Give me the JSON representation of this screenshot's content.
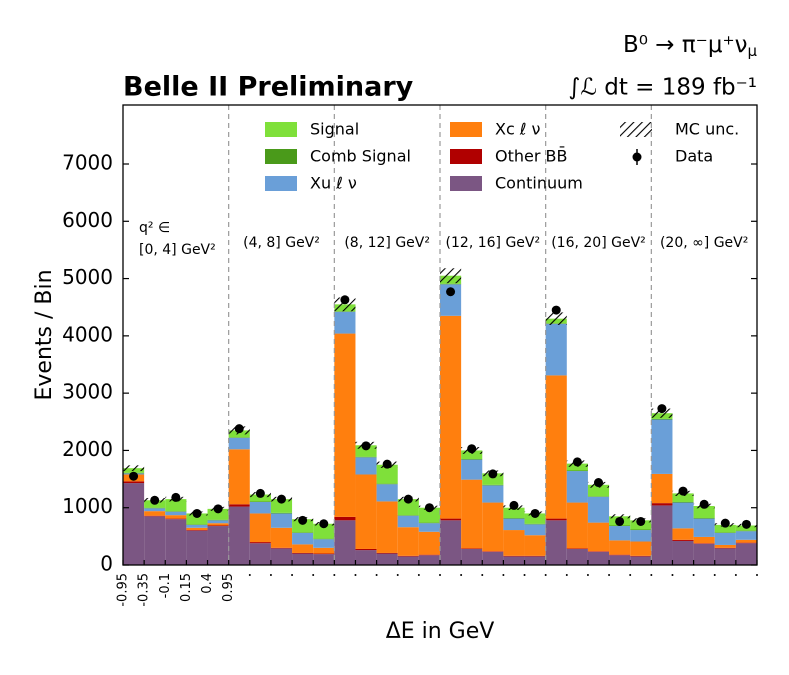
{
  "chart_data": {
    "type": "stacked-histogram",
    "title": "Belle II Preliminary",
    "process": [
      "B⁰ → π⁻μ⁺ν",
      "μ"
    ],
    "luminosity": "∫ℒ dt = 189 fb⁻¹",
    "xlabel": "ΔE in GeV",
    "ylabel": "Events / Bin",
    "ylim": [
      0,
      8030
    ],
    "yticks": [
      0,
      1000,
      2000,
      3000,
      4000,
      5000,
      6000,
      7000
    ],
    "bin_edge_labels": [
      "-0.95",
      "-0.35",
      "-0.1",
      "0.15",
      "0.4",
      "0.95",
      null,
      null,
      null,
      null,
      null,
      null,
      null,
      null,
      null,
      null,
      null,
      null,
      null,
      null,
      null,
      null,
      null,
      null,
      null,
      null,
      null,
      null,
      null,
      null,
      null
    ],
    "regions": [
      [
        "q² ∈",
        "[0, 4] GeV²"
      ],
      [
        "(4, 8] GeV²"
      ],
      [
        "(8, 12] GeV²"
      ],
      [
        "(12, 16] GeV²"
      ],
      [
        "(16, 20] GeV²"
      ],
      [
        "(20, ∞] GeV²"
      ]
    ],
    "series": [
      {
        "name": "Signal",
        "color": "#7fe03a",
        "values": [
          80,
          130,
          210,
          190,
          190,
          120,
          120,
          240,
          230,
          260,
          120,
          200,
          330,
          280,
          260,
          140,
          150,
          200,
          180,
          180,
          80,
          120,
          200,
          160,
          160,
          100,
          150,
          210,
          130,
          90
        ]
      },
      {
        "name": "Comb Signal",
        "color": "#4a9a1a",
        "values": [
          10,
          10,
          10,
          10,
          10,
          10,
          10,
          10,
          10,
          10,
          10,
          10,
          10,
          10,
          10,
          10,
          10,
          10,
          10,
          10,
          10,
          10,
          10,
          10,
          10,
          10,
          10,
          10,
          10,
          10
        ]
      },
      {
        "name": "Xu ℓ ν",
        "color": "#6a9fd8",
        "values": [
          20,
          50,
          60,
          50,
          50,
          200,
          200,
          250,
          200,
          150,
          380,
          300,
          300,
          200,
          150,
          550,
          350,
          300,
          200,
          190,
          900,
          550,
          450,
          250,
          200,
          950,
          450,
          320,
          210,
          150
        ]
      },
      {
        "name": "Xc ℓ ν",
        "color": "#ff7f0e",
        "values": [
          120,
          80,
          60,
          40,
          40,
          960,
          500,
          350,
          150,
          100,
          3200,
          1300,
          900,
          500,
          400,
          3540,
          1200,
          850,
          450,
          360,
          2500,
          800,
          500,
          250,
          250,
          510,
          200,
          110,
          50,
          50
        ]
      },
      {
        "name": "Other BB̄",
        "color": "#b00000",
        "values": [
          30,
          10,
          10,
          10,
          10,
          40,
          20,
          10,
          10,
          10,
          60,
          20,
          10,
          10,
          10,
          30,
          10,
          10,
          10,
          10,
          30,
          10,
          10,
          10,
          10,
          40,
          20,
          10,
          10,
          10
        ]
      },
      {
        "name": "Continuum",
        "color": "#7b5683",
        "values": [
          1430,
          850,
          800,
          600,
          680,
          1020,
          380,
          290,
          200,
          190,
          780,
          260,
          200,
          150,
          170,
          780,
          280,
          230,
          150,
          150,
          780,
          280,
          230,
          170,
          150,
          1040,
          420,
          370,
          290,
          380
        ]
      }
    ],
    "mc_unc": {
      "name": "MC unc.",
      "values": [
        50,
        40,
        40,
        35,
        35,
        70,
        45,
        40,
        35,
        30,
        120,
        60,
        55,
        40,
        35,
        130,
        60,
        50,
        40,
        35,
        110,
        55,
        50,
        35,
        35,
        80,
        45,
        40,
        30,
        30
      ]
    },
    "data": {
      "name": "Data",
      "values": [
        1550,
        1130,
        1180,
        900,
        980,
        2380,
        1250,
        1150,
        780,
        720,
        4630,
        2080,
        1760,
        1150,
        1000,
        4770,
        2030,
        1590,
        1040,
        900,
        4450,
        1800,
        1440,
        760,
        760,
        2730,
        1290,
        1060,
        730,
        710
      ]
    }
  }
}
